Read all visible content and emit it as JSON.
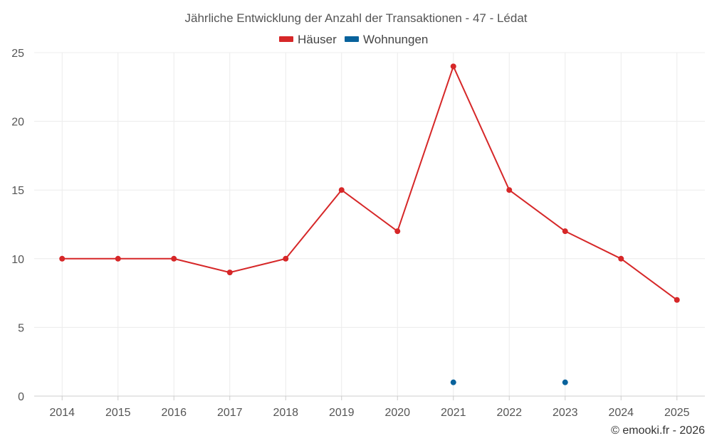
{
  "chart_data": {
    "type": "line",
    "title": "Jährliche Entwicklung der Anzahl der Transaktionen - 47 - Lédat",
    "categories": [
      "2014",
      "2015",
      "2016",
      "2017",
      "2018",
      "2019",
      "2020",
      "2021",
      "2022",
      "2023",
      "2024",
      "2025"
    ],
    "series": [
      {
        "name": "Häuser",
        "color": "#d62728",
        "values": [
          10,
          10,
          10,
          9,
          10,
          15,
          12,
          24,
          15,
          12,
          10,
          7
        ]
      },
      {
        "name": "Wohnungen",
        "color": "#08629c",
        "values": [
          null,
          null,
          null,
          null,
          null,
          null,
          null,
          1,
          null,
          1,
          null,
          null
        ]
      }
    ],
    "ylim": [
      0,
      25
    ],
    "yticks": [
      "0",
      "5",
      "10",
      "15",
      "20",
      "25"
    ],
    "xlabel": "",
    "ylabel": "",
    "grid": true,
    "legend_position": "top-center",
    "credit": "© emooki.fr - 2026"
  }
}
